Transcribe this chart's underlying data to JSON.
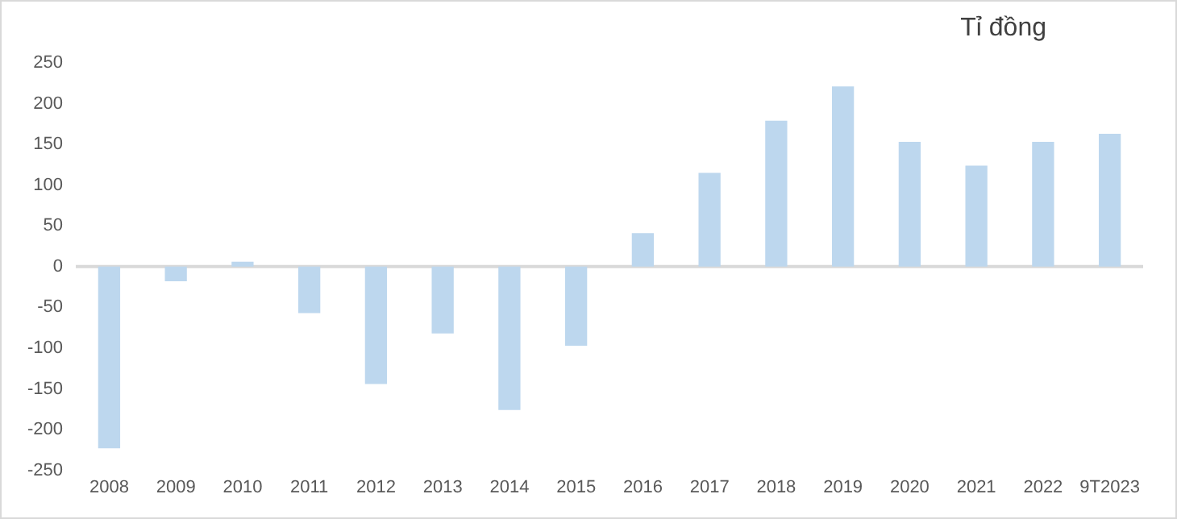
{
  "chart_data": {
    "type": "bar",
    "ylabel": "Tỉ đồng",
    "categories": [
      "2008",
      "2009",
      "2010",
      "2011",
      "2012",
      "2013",
      "2014",
      "2015",
      "2016",
      "2017",
      "2018",
      "2019",
      "2020",
      "2021",
      "2022",
      "9T2023"
    ],
    "values": [
      -223,
      -18,
      6,
      -57,
      -144,
      -82,
      -176,
      -97,
      41,
      115,
      179,
      221,
      153,
      124,
      153,
      163
    ],
    "color": "#bdd7ee",
    "ylim": [
      -250,
      250
    ],
    "yticks": [
      -250,
      -200,
      -150,
      -100,
      -50,
      0,
      50,
      100,
      150,
      200,
      250
    ]
  }
}
